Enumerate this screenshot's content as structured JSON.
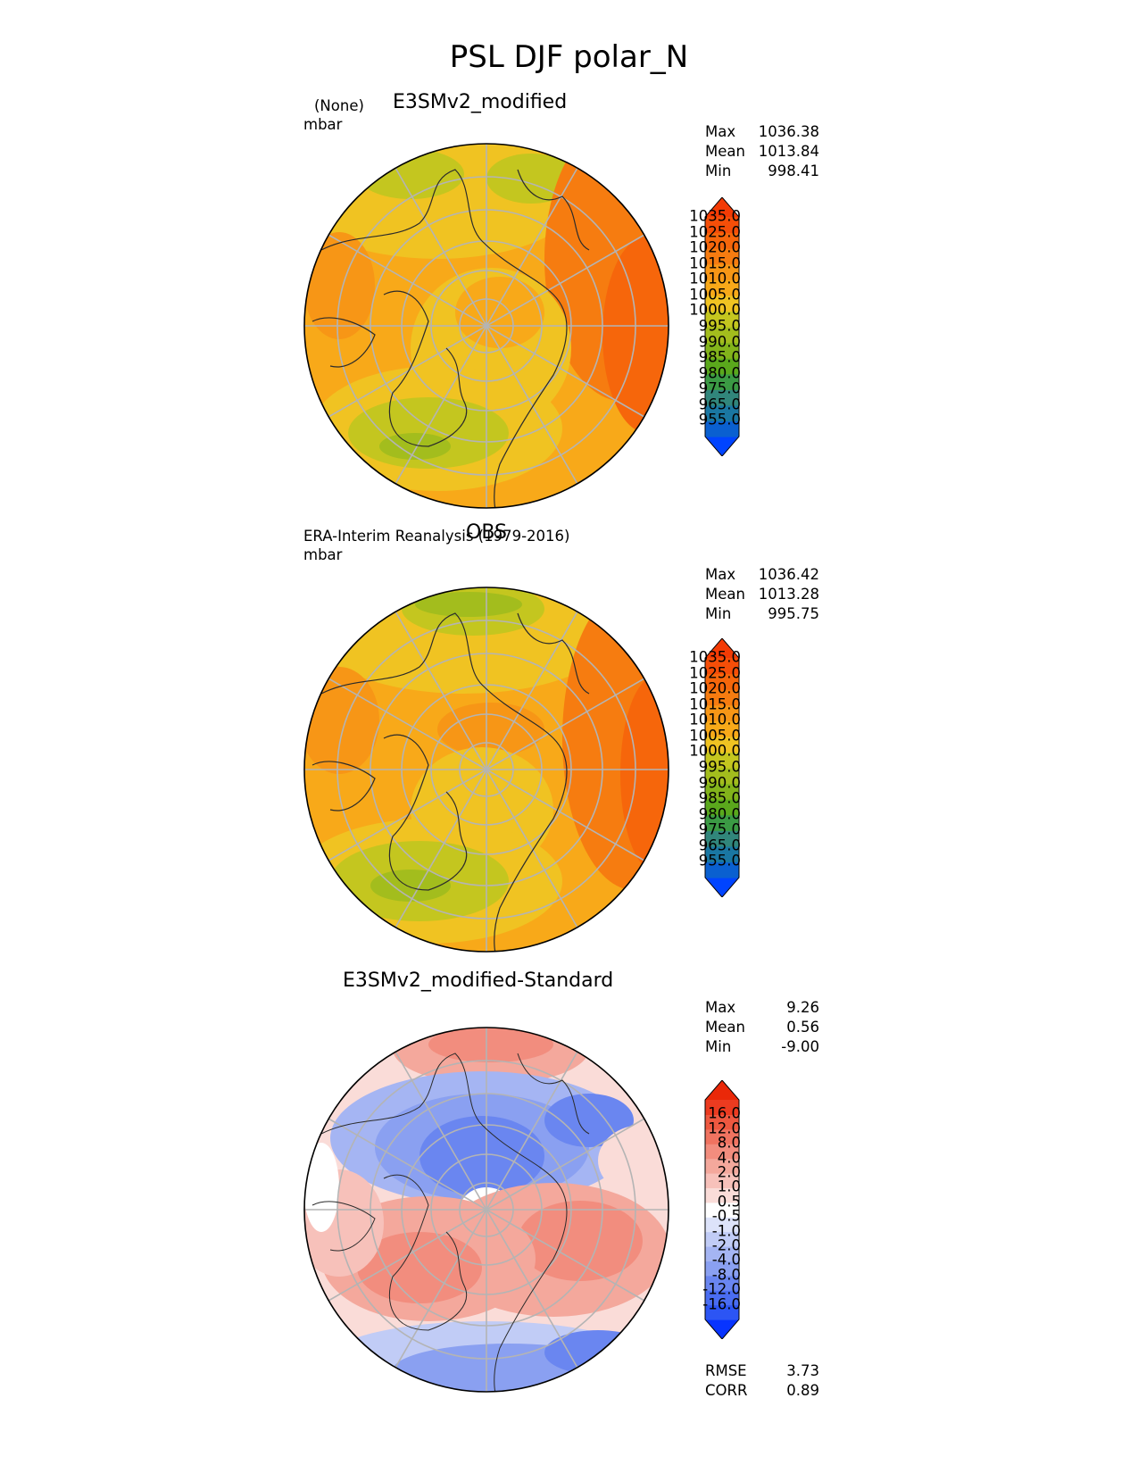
{
  "figure_title": "PSL DJF polar_N",
  "panels": [
    {
      "title": "E3SMv2_modified",
      "subtitle_lines": [
        "(None)",
        "mbar"
      ],
      "stats": {
        "max_label": "Max",
        "max": "1036.38",
        "mean_label": "Mean",
        "mean": "1013.84",
        "min_label": "Min",
        "min": "998.41"
      }
    },
    {
      "title": "OBS",
      "subtitle_lines": [
        "ERA-Interim Reanalysis (1979-2016)",
        "mbar"
      ],
      "stats": {
        "max_label": "Max",
        "max": "1036.42",
        "mean_label": "Mean",
        "mean": "1013.28",
        "min_label": "Min",
        "min": "995.75"
      }
    },
    {
      "title": "E3SMv2_modified-Standard",
      "subtitle_lines": [],
      "stats": {
        "max_label": "Max",
        "max": "9.26",
        "mean_label": "Mean",
        "mean": "0.56",
        "min_label": "Min",
        "min": "-9.00"
      }
    }
  ],
  "colorbars": {
    "absolute": {
      "colors": [
        "#0044ff",
        "#0a60d0",
        "#1a77a2",
        "#31867b",
        "#3b9a44",
        "#5aa81c",
        "#82b31b",
        "#a3bd1d",
        "#c4c61f",
        "#f0c322",
        "#f8a919",
        "#f79616",
        "#f67c10",
        "#f6660b",
        "#f54e08",
        "#f33b05"
      ],
      "tick_labels": [
        "955.0",
        "965.0",
        "975.0",
        "980.0",
        "985.0",
        "990.0",
        "995.0",
        "1000.0",
        "1005.0",
        "1010.0",
        "1015.0",
        "1020.0",
        "1025.0",
        "1035.0"
      ]
    },
    "difference": {
      "colors": [
        "#0834ff",
        "#2c55f4",
        "#4a6df1",
        "#6a86f0",
        "#8aa0f1",
        "#a5b5f3",
        "#c1ccf6",
        "#dde3fa",
        "#ffffff",
        "#fadcd8",
        "#f7c1ba",
        "#f4a89c",
        "#f28d7e",
        "#f07360",
        "#ee5840",
        "#ec3b20",
        "#ea2808"
      ],
      "tick_labels": [
        "-16.0",
        "-12.0",
        "-8.0",
        "-4.0",
        "-2.0",
        "-1.0",
        "-0.5",
        "0.5",
        "1.0",
        "2.0",
        "4.0",
        "8.0",
        "12.0",
        "16.0"
      ]
    }
  },
  "metrics": {
    "rmse_label": "RMSE",
    "rmse": "3.73",
    "corr_label": "CORR",
    "corr": "0.89"
  }
}
